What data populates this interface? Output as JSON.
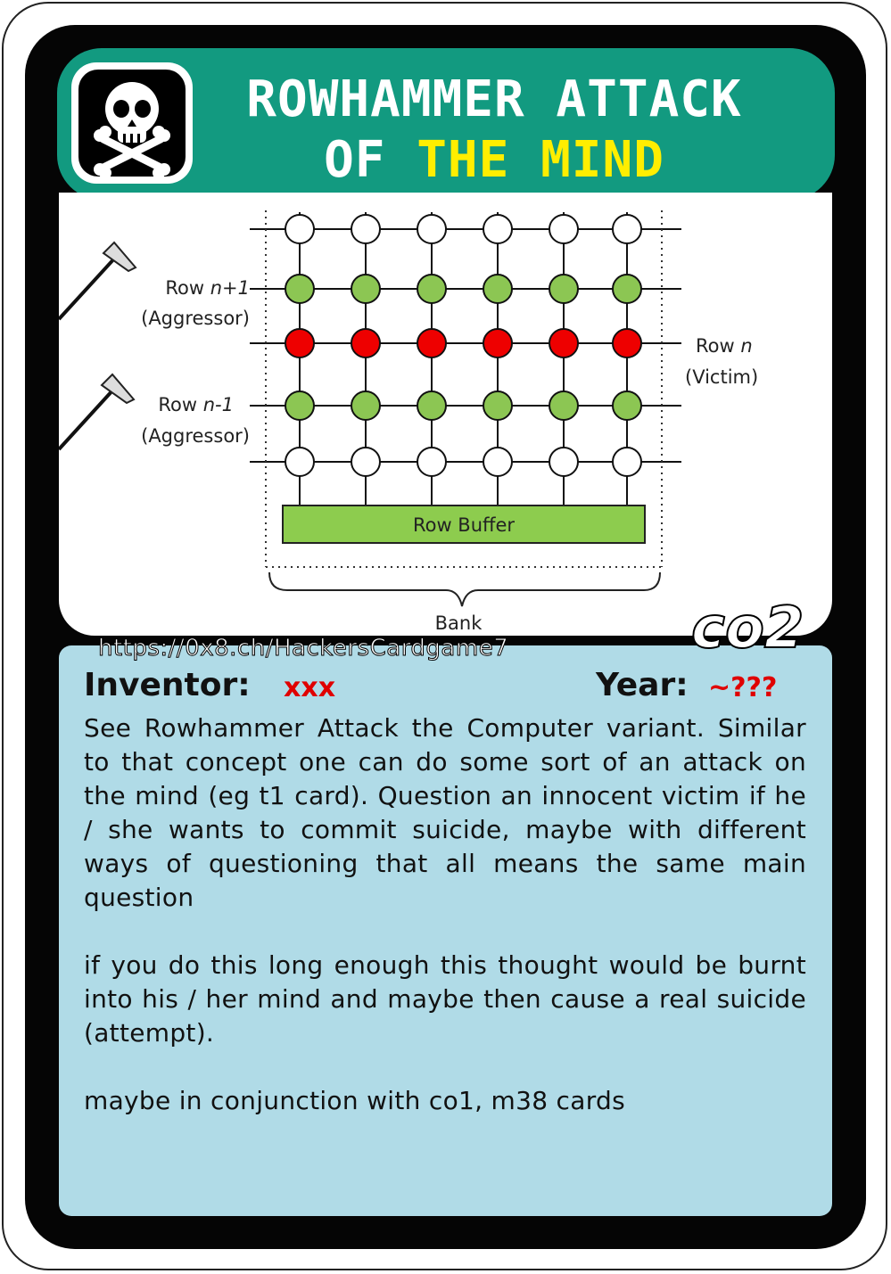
{
  "card": {
    "title_line1": "ROWHAMMER ATTACK",
    "title_line2_prefix": "OF ",
    "title_line2_highlight": "THE MIND",
    "url": "https://0x8.ch/HackersCardgame7",
    "code": "co2",
    "inventor_label": "Inventor:",
    "inventor_value": "xxx",
    "year_label": "Year:",
    "year_value": "~???",
    "paragraphs": [
      "See Rowhammer Attack the Computer variant. Similar to that concept one can do some sort of an attack on the mind (eg t1 card). Question an innocent victim if he / she wants to commit suicide, maybe with different ways of questioning that all means the same main question",
      "if you do this long enough this thought would be burnt into his / her mind and maybe then cause a real suicide (attempt).",
      "maybe in conjunction with co1, m38 cards"
    ],
    "colors": {
      "banner": "#129a80",
      "highlight": "#ffee00",
      "panel": "#b0dbe7",
      "red": "#e00000"
    }
  },
  "diagram": {
    "aggressor1_row": "Row ",
    "aggressor1_var": "n+1",
    "aggressor1_role": "(Aggressor)",
    "aggressor2_row": "Row ",
    "aggressor2_var": "n-1",
    "aggressor2_role": "(Aggressor)",
    "victim_row": "Row ",
    "victim_var": "n",
    "victim_role": "(Victim)",
    "row_buffer": "Row Buffer",
    "bank": "Bank",
    "row_states": [
      "empty",
      "aggressor",
      "victim",
      "aggressor",
      "empty"
    ],
    "cells_per_row": 6,
    "colors": {
      "empty": "#ffffff",
      "aggressor": "#8cc653",
      "victim": "#ee0000",
      "buffer": "#8dcc4e"
    }
  }
}
